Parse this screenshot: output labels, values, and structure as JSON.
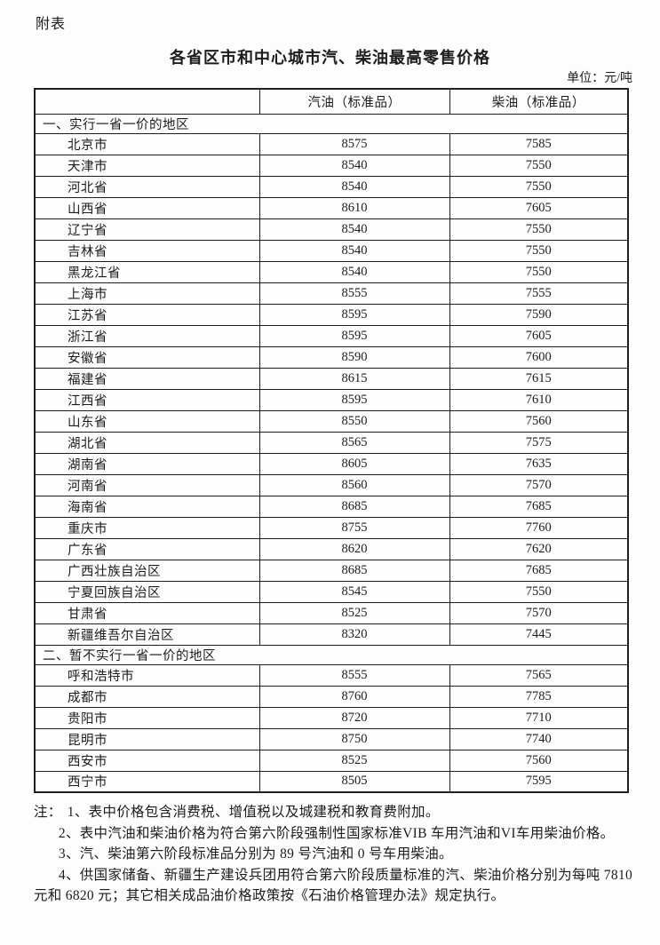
{
  "page": {
    "appendix_label": "附表",
    "title": "各省区市和中心城市汽、柴油最高零售价格",
    "unit_label": "单位：元/吨"
  },
  "table": {
    "columns": [
      "",
      "汽油（标准品）",
      "柴油（标准品）"
    ],
    "sections": [
      {
        "header": "一、实行一省一价的地区",
        "rows": [
          {
            "region": "北京市",
            "gasoline": "8575",
            "diesel": "7585"
          },
          {
            "region": "天津市",
            "gasoline": "8540",
            "diesel": "7550"
          },
          {
            "region": "河北省",
            "gasoline": "8540",
            "diesel": "7550"
          },
          {
            "region": "山西省",
            "gasoline": "8610",
            "diesel": "7605"
          },
          {
            "region": "辽宁省",
            "gasoline": "8540",
            "diesel": "7550"
          },
          {
            "region": "吉林省",
            "gasoline": "8540",
            "diesel": "7550"
          },
          {
            "region": "黑龙江省",
            "gasoline": "8540",
            "diesel": "7550"
          },
          {
            "region": "上海市",
            "gasoline": "8555",
            "diesel": "7555"
          },
          {
            "region": "江苏省",
            "gasoline": "8595",
            "diesel": "7590"
          },
          {
            "region": "浙江省",
            "gasoline": "8595",
            "diesel": "7605"
          },
          {
            "region": "安徽省",
            "gasoline": "8590",
            "diesel": "7600"
          },
          {
            "region": "福建省",
            "gasoline": "8615",
            "diesel": "7615"
          },
          {
            "region": "江西省",
            "gasoline": "8595",
            "diesel": "7610"
          },
          {
            "region": "山东省",
            "gasoline": "8550",
            "diesel": "7560"
          },
          {
            "region": "湖北省",
            "gasoline": "8565",
            "diesel": "7575"
          },
          {
            "region": "湖南省",
            "gasoline": "8605",
            "diesel": "7635"
          },
          {
            "region": "河南省",
            "gasoline": "8560",
            "diesel": "7570"
          },
          {
            "region": "海南省",
            "gasoline": "8685",
            "diesel": "7685"
          },
          {
            "region": "重庆市",
            "gasoline": "8755",
            "diesel": "7760"
          },
          {
            "region": "广东省",
            "gasoline": "8620",
            "diesel": "7620"
          },
          {
            "region": "广西壮族自治区",
            "gasoline": "8685",
            "diesel": "7685"
          },
          {
            "region": "宁夏回族自治区",
            "gasoline": "8545",
            "diesel": "7550"
          },
          {
            "region": "甘肃省",
            "gasoline": "8525",
            "diesel": "7570"
          },
          {
            "region": "新疆维吾尔自治区",
            "gasoline": "8320",
            "diesel": "7445"
          }
        ]
      },
      {
        "header": "二、暂不实行一省一价的地区",
        "rows": [
          {
            "region": "呼和浩特市",
            "gasoline": "8555",
            "diesel": "7565"
          },
          {
            "region": "成都市",
            "gasoline": "8760",
            "diesel": "7785"
          },
          {
            "region": "贵阳市",
            "gasoline": "8720",
            "diesel": "7710"
          },
          {
            "region": "昆明市",
            "gasoline": "8750",
            "diesel": "7740"
          },
          {
            "region": "西安市",
            "gasoline": "8525",
            "diesel": "7560"
          },
          {
            "region": "西宁市",
            "gasoline": "8505",
            "diesel": "7595"
          }
        ]
      }
    ]
  },
  "notes": {
    "label": "注：",
    "items": [
      "1、表中价格包含消费税、增值税以及城建税和教育费附加。",
      "2、表中汽油和柴油价格为符合第六阶段强制性国家标准VIB 车用汽油和VI车用柴油价格。",
      "3、汽、柴油第六阶段标准品分别为 89 号汽油和 0 号车用柴油。",
      "4、供国家储备、新疆生产建设兵团用符合第六阶段质量标准的汽、柴油价格分别为每吨 7810 元和 6820 元；其它相关成品油价格政策按《石油价格管理办法》规定执行。"
    ]
  }
}
